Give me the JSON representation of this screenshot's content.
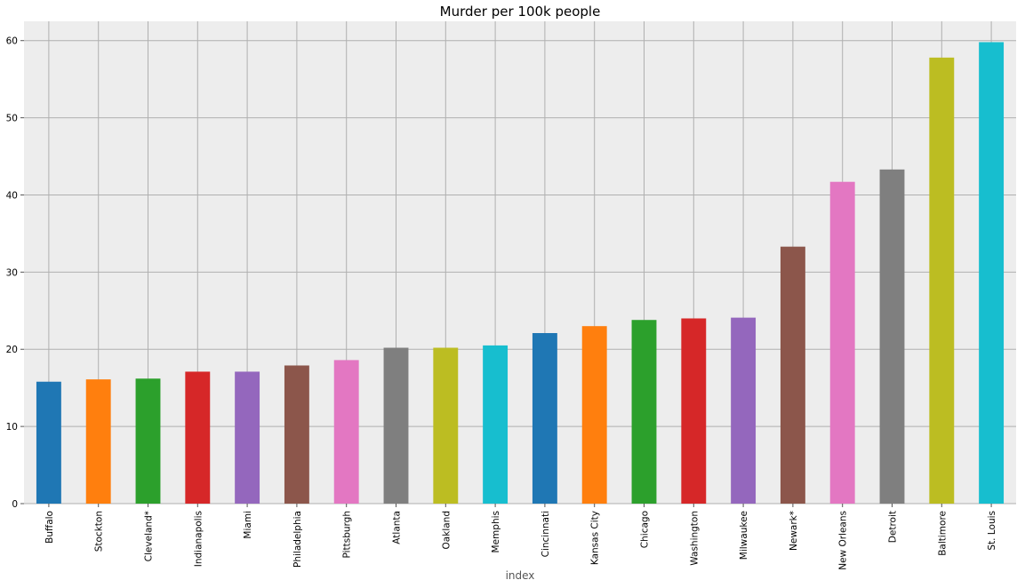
{
  "chart_data": {
    "type": "bar",
    "title": "Murder per 100k people",
    "xlabel": "index",
    "ylabel": "",
    "ylim": [
      0,
      62.5
    ],
    "yticks": [
      0,
      10,
      20,
      30,
      40,
      50,
      60
    ],
    "grid": true,
    "categories": [
      "Buffalo",
      "Stockton",
      "Cleveland*",
      "Indianapolis",
      "Miami",
      "Philadelphia",
      "Pittsburgh",
      "Atlanta",
      "Oakland",
      "Memphis",
      "Cincinnati",
      "Kansas City",
      "Chicago",
      "Washington",
      "Milwaukee",
      "Newark*",
      "New Orleans",
      "Detroit",
      "Baltimore",
      "St. Louis"
    ],
    "values": [
      15.8,
      16.1,
      16.2,
      17.1,
      17.1,
      17.9,
      18.6,
      20.2,
      20.2,
      20.5,
      22.1,
      23.0,
      23.8,
      24.0,
      24.1,
      33.3,
      41.7,
      43.3,
      57.8,
      59.8
    ],
    "colors": [
      "#1f77b4",
      "#ff7f0e",
      "#2ca02c",
      "#d62728",
      "#9467bd",
      "#8c564b",
      "#e377c2",
      "#7f7f7f",
      "#bcbd22",
      "#17becf"
    ]
  }
}
